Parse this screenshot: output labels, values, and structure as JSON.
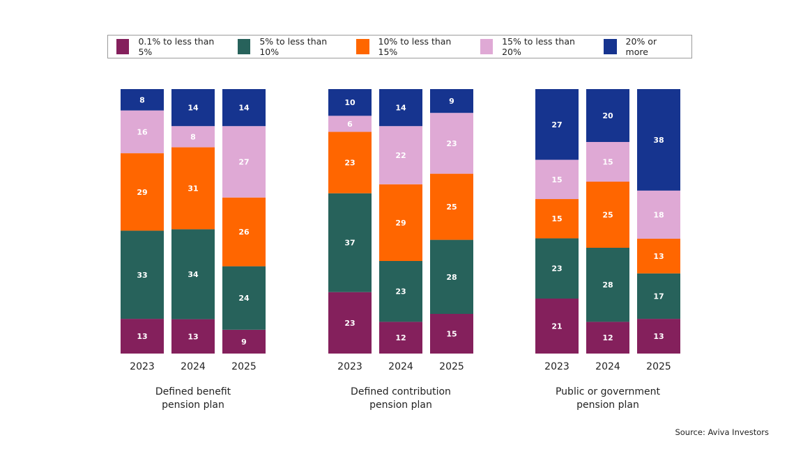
{
  "chart_data": {
    "type": "bar",
    "stacked": true,
    "legend_placement": "top",
    "grid": false,
    "legend": [
      {
        "name": "0.1% to less than 5%",
        "color": "#84205c"
      },
      {
        "name": "5% to less than 10%",
        "color": "#27625b"
      },
      {
        "name": "10% to less than 15%",
        "color": "#ff6600"
      },
      {
        "name": "15% to less than 20%",
        "color": "#dfa9d5"
      },
      {
        "name": "20% or more",
        "color": "#16348f"
      }
    ],
    "groups": [
      {
        "label_lines": [
          "Defined benefit",
          "pension plan"
        ],
        "categories": [
          "2023",
          "2024",
          "2025"
        ],
        "values": [
          [
            13,
            33,
            29,
            16,
            8
          ],
          [
            13,
            34,
            31,
            8,
            14
          ],
          [
            9,
            24,
            26,
            27,
            14
          ]
        ]
      },
      {
        "label_lines": [
          "Defined contribution",
          "pension plan"
        ],
        "categories": [
          "2023",
          "2024",
          "2025"
        ],
        "values": [
          [
            23,
            37,
            23,
            6,
            10
          ],
          [
            12,
            23,
            29,
            22,
            14
          ],
          [
            15,
            28,
            25,
            23,
            9
          ]
        ]
      },
      {
        "label_lines": [
          "Public or government",
          "pension plan"
        ],
        "categories": [
          "2023",
          "2024",
          "2025"
        ],
        "values": [
          [
            21,
            23,
            15,
            15,
            27
          ],
          [
            12,
            28,
            25,
            15,
            20
          ],
          [
            13,
            17,
            13,
            18,
            38
          ]
        ]
      }
    ]
  },
  "source": "Source: Aviva Investors"
}
